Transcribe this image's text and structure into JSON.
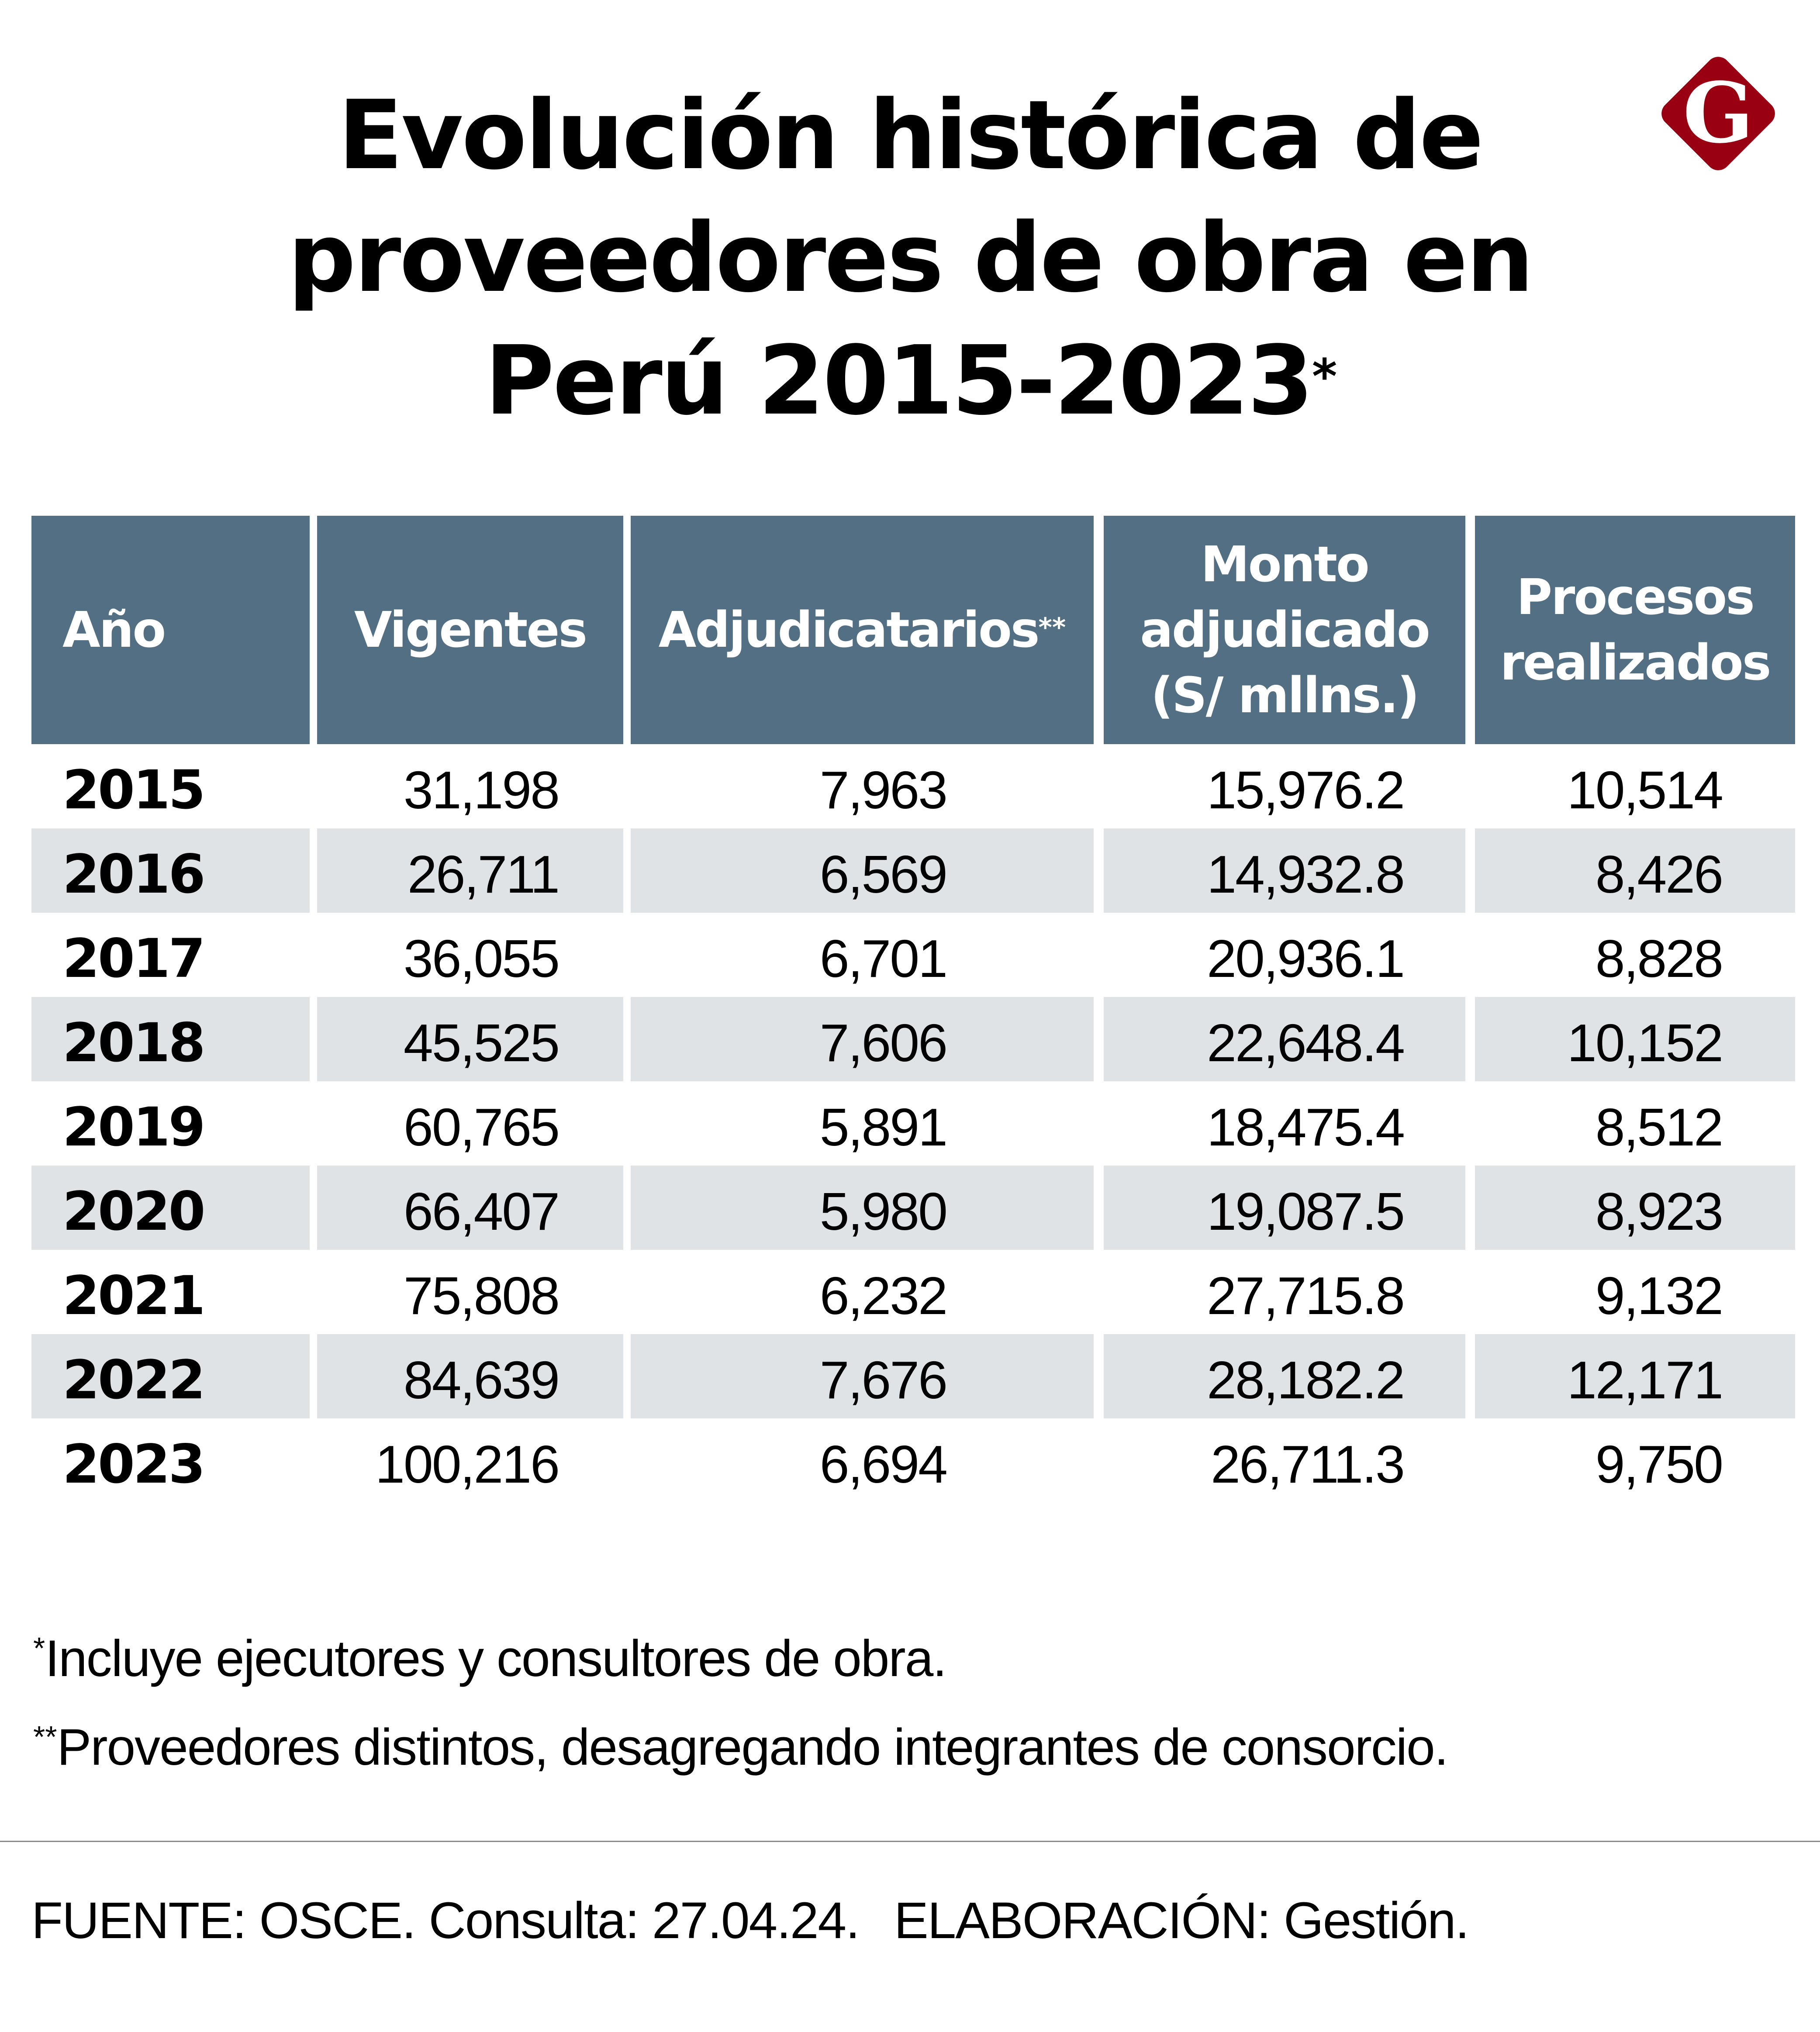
{
  "title": {
    "lines": [
      "Evolución histórica de",
      "proveedores de obra en",
      "Perú 2015-2023"
    ],
    "footnote_marker": "*"
  },
  "logo": {
    "letter": "G",
    "color": "#990012",
    "icon": "gestion-logo-icon"
  },
  "colors": {
    "header_bg": "#536F84",
    "stripe_bg": "#DFE3E6",
    "header_text": "#FFFFFF"
  },
  "table": {
    "headers": [
      {
        "label": "Año"
      },
      {
        "label": "Vigentes"
      },
      {
        "label": "Adjudicatarios",
        "marker": "**"
      },
      {
        "label_lines": [
          "Monto",
          "adjudicado",
          "(S/ mllns.)"
        ]
      },
      {
        "label_lines": [
          "Procesos",
          "realizados"
        ]
      }
    ],
    "rows": [
      {
        "year": "2015",
        "vigentes": "31,198",
        "adjudicatarios": "7,963",
        "monto": "15,976.2",
        "procesos": "10,514"
      },
      {
        "year": "2016",
        "vigentes": "26,711",
        "adjudicatarios": "6,569",
        "monto": "14,932.8",
        "procesos": "8,426"
      },
      {
        "year": "2017",
        "vigentes": "36,055",
        "adjudicatarios": "6,701",
        "monto": "20,936.1",
        "procesos": "8,828"
      },
      {
        "year": "2018",
        "vigentes": "45,525",
        "adjudicatarios": "7,606",
        "monto": "22,648.4",
        "procesos": "10,152"
      },
      {
        "year": "2019",
        "vigentes": "60,765",
        "adjudicatarios": "5,891",
        "monto": "18,475.4",
        "procesos": "8,512"
      },
      {
        "year": "2020",
        "vigentes": "66,407",
        "adjudicatarios": "5,980",
        "monto": "19,087.5",
        "procesos": "8,923"
      },
      {
        "year": "2021",
        "vigentes": "75,808",
        "adjudicatarios": "6,232",
        "monto": "27,715.8",
        "procesos": "9,132"
      },
      {
        "year": "2022",
        "vigentes": "84,639",
        "adjudicatarios": "7,676",
        "monto": "28,182.2",
        "procesos": "12,171"
      },
      {
        "year": "2023",
        "vigentes": "100,216",
        "adjudicatarios": "6,694",
        "monto": "26,711.3",
        "procesos": "9,750"
      }
    ]
  },
  "footnotes": [
    {
      "marker": "*",
      "text": "Incluye ejecutores y consultores de obra."
    },
    {
      "marker": "**",
      "text": "Proveedores distintos, desagregando integrantes de consorcio."
    }
  ],
  "source": {
    "fuente": "FUENTE: OSCE. Consulta: 27.04.24.",
    "elaboracion": "ELABORACIÓN: Gestión."
  }
}
